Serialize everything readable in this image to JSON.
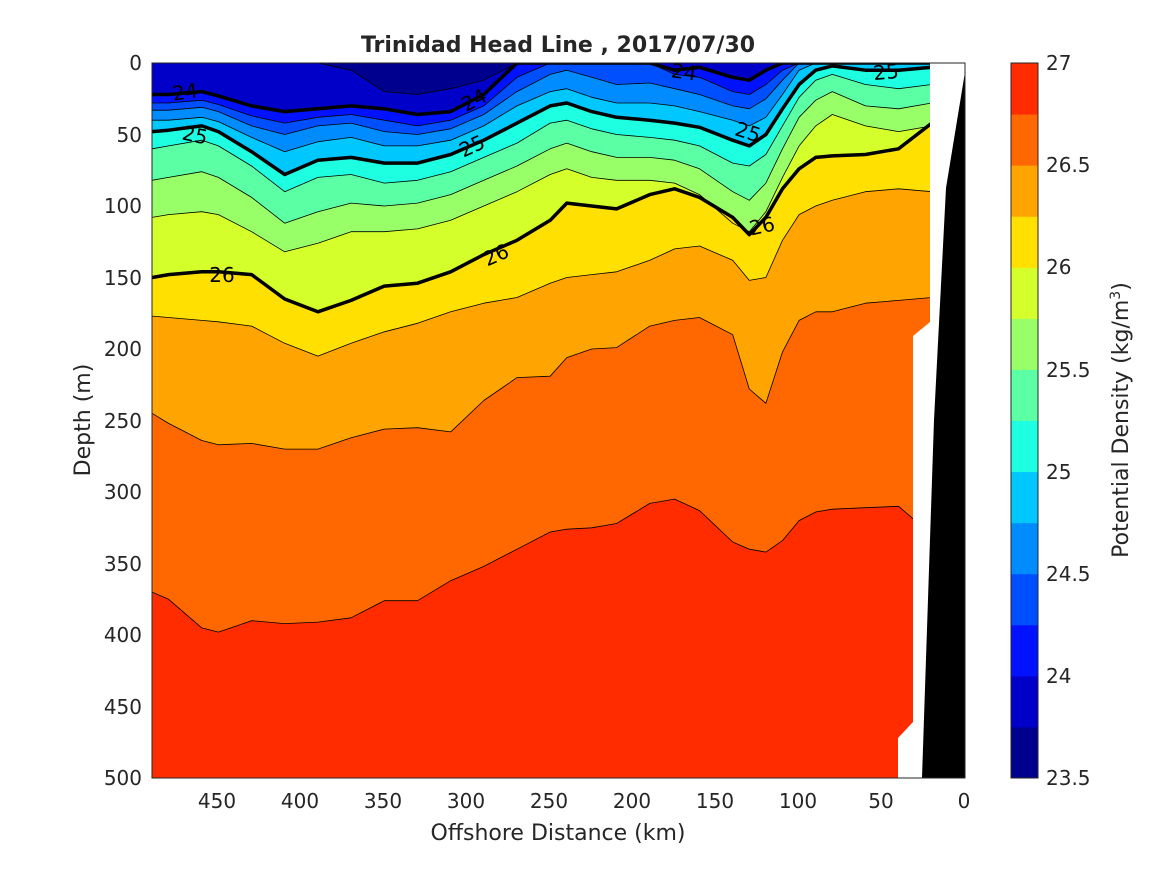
{
  "chart_data": {
    "type": "contour",
    "title": "Trinidad Head Line , 2017/07/30",
    "xlabel": "Offshore Distance (km)",
    "ylabel": "Depth (m)",
    "colorbar_label": "Potential Density (kg/m",
    "colorbar_label_sup": "3",
    "colorbar_label_end": ")",
    "xlim": [
      490,
      0
    ],
    "ylim": [
      0,
      500
    ],
    "x_ticks": [
      "450",
      "400",
      "350",
      "300",
      "250",
      "200",
      "150",
      "100",
      "50",
      "0"
    ],
    "y_ticks": [
      "0",
      "50",
      "100",
      "150",
      "200",
      "250",
      "300",
      "350",
      "400",
      "450",
      "500"
    ],
    "colorbar_ticks": [
      "27",
      "26.5",
      "26",
      "25.5",
      "25",
      "24.5",
      "24",
      "23.5"
    ],
    "levels": [
      23.5,
      23.75,
      24.0,
      24.25,
      24.5,
      24.75,
      25.0,
      25.25,
      25.5,
      25.75,
      26.0,
      26.25,
      26.5,
      26.75,
      27.0
    ],
    "colormap": [
      "#00008f",
      "#0000c8",
      "#0012ff",
      "#004fff",
      "#008cff",
      "#00c8ff",
      "#1effe2",
      "#5bffa4",
      "#98ff68",
      "#d4ff2b",
      "#ffe000",
      "#ffa400",
      "#ff6800",
      "#ff2c00",
      "#c40000"
    ],
    "land_color": "#000000",
    "contour_labels": [
      "24",
      "24",
      "24",
      "25",
      "25",
      "25",
      "25",
      "26",
      "26",
      "26"
    ],
    "x": [
      490,
      480,
      460,
      450,
      430,
      410,
      390,
      370,
      350,
      330,
      310,
      290,
      270,
      250,
      240,
      225,
      210,
      190,
      175,
      160,
      140,
      130,
      120,
      110,
      100,
      90,
      80,
      60,
      40,
      20
    ],
    "isopycnals": [
      {
        "level": 23.75,
        "depth": [
          0,
          0,
          0,
          0,
          0,
          0,
          0,
          5,
          20,
          22,
          18,
          12,
          0,
          0,
          0,
          0,
          0,
          0,
          0,
          0,
          0,
          0,
          0,
          0,
          0,
          0,
          0,
          0,
          0,
          0
        ]
      },
      {
        "level": 24.0,
        "depth": [
          22,
          22,
          20,
          23,
          30,
          34,
          32,
          30,
          32,
          36,
          34,
          22,
          0,
          0,
          0,
          0,
          0,
          0,
          5,
          3,
          10,
          12,
          5,
          0,
          0,
          0,
          0,
          0,
          0,
          0
        ]
      },
      {
        "level": 24.25,
        "depth": [
          28,
          28,
          26,
          29,
          37,
          42,
          38,
          36,
          40,
          44,
          40,
          30,
          10,
          0,
          0,
          0,
          0,
          0,
          8,
          10,
          20,
          22,
          15,
          5,
          0,
          0,
          0,
          0,
          0,
          0
        ]
      },
      {
        "level": 24.5,
        "depth": [
          33,
          33,
          31,
          34,
          44,
          50,
          44,
          42,
          48,
          50,
          46,
          36,
          20,
          8,
          5,
          10,
          15,
          14,
          18,
          22,
          30,
          32,
          25,
          12,
          0,
          0,
          0,
          0,
          0,
          0
        ]
      },
      {
        "level": 24.75,
        "depth": [
          40,
          40,
          38,
          41,
          52,
          62,
          55,
          52,
          58,
          58,
          54,
          44,
          30,
          20,
          18,
          24,
          28,
          28,
          30,
          34,
          40,
          44,
          38,
          22,
          5,
          0,
          0,
          0,
          0,
          0
        ]
      },
      {
        "level": 25.0,
        "depth": [
          48,
          47,
          44,
          48,
          62,
          78,
          68,
          66,
          70,
          70,
          64,
          54,
          42,
          30,
          28,
          34,
          38,
          40,
          42,
          45,
          54,
          58,
          50,
          32,
          15,
          5,
          2,
          5,
          5,
          3
        ]
      },
      {
        "level": 25.25,
        "depth": [
          60,
          58,
          54,
          58,
          72,
          90,
          80,
          78,
          84,
          82,
          76,
          66,
          56,
          42,
          40,
          46,
          50,
          52,
          54,
          58,
          70,
          72,
          64,
          44,
          24,
          12,
          8,
          15,
          18,
          15
        ]
      },
      {
        "level": 25.5,
        "depth": [
          82,
          80,
          76,
          80,
          94,
          112,
          104,
          98,
          100,
          98,
          92,
          82,
          72,
          60,
          56,
          62,
          66,
          66,
          68,
          74,
          90,
          96,
          84,
          60,
          38,
          26,
          20,
          30,
          32,
          28
        ]
      },
      {
        "level": 25.75,
        "depth": [
          108,
          106,
          104,
          106,
          118,
          132,
          126,
          118,
          118,
          116,
          110,
          100,
          90,
          78,
          74,
          80,
          82,
          82,
          84,
          92,
          112,
          118,
          104,
          80,
          58,
          44,
          36,
          44,
          48,
          44
        ]
      },
      {
        "level": 26.0,
        "depth": [
          150,
          148,
          146,
          146,
          148,
          165,
          174,
          166,
          156,
          154,
          146,
          134,
          124,
          110,
          98,
          100,
          102,
          92,
          88,
          94,
          108,
          120,
          108,
          88,
          74,
          66,
          65,
          64,
          60,
          42
        ]
      },
      {
        "level": 26.25,
        "depth": [
          177,
          178,
          180,
          181,
          184,
          196,
          205,
          196,
          188,
          182,
          174,
          168,
          164,
          154,
          150,
          148,
          146,
          138,
          130,
          128,
          138,
          152,
          150,
          124,
          106,
          100,
          96,
          90,
          88,
          90
        ]
      },
      {
        "level": 26.5,
        "depth": [
          245,
          252,
          264,
          267,
          266,
          270,
          270,
          262,
          256,
          255,
          258,
          236,
          220,
          219,
          206,
          200,
          199,
          184,
          180,
          178,
          190,
          228,
          238,
          202,
          180,
          174,
          174,
          168,
          166,
          164
        ]
      },
      {
        "level": 26.75,
        "depth": [
          370,
          375,
          395,
          398,
          390,
          392,
          391,
          388,
          376,
          376,
          362,
          352,
          340,
          328,
          326,
          325,
          322,
          308,
          305,
          313,
          335,
          340,
          342,
          334,
          320,
          314,
          312,
          311,
          310,
          330
        ]
      }
    ],
    "bold_contours": [
      24.0,
      25.0,
      26.0
    ],
    "grid": false
  }
}
